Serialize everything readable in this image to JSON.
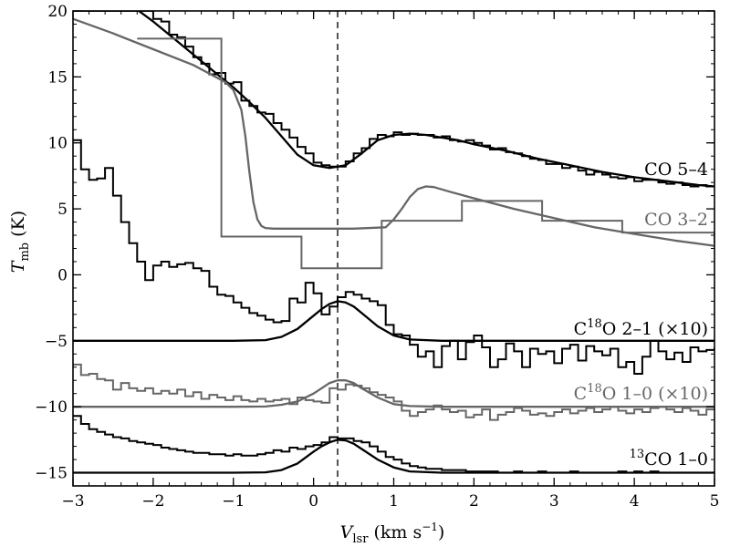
{
  "chart_data": {
    "type": "line",
    "title": "",
    "xlabel": "V_lsr (km s^-1)",
    "ylabel": "T_mb (K)",
    "xlim": [
      -3,
      5
    ],
    "ylim": [
      -16,
      20
    ],
    "x_ticks": [
      -3,
      -2,
      -1,
      0,
      1,
      2,
      3,
      4,
      5
    ],
    "y_ticks": [
      -15,
      -10,
      -5,
      0,
      5,
      10,
      15,
      20
    ],
    "x_tick_labels": [
      "−3",
      "−2",
      "−1",
      "0",
      "1",
      "2",
      "3",
      "4",
      "5"
    ],
    "y_tick_labels": [
      "−15",
      "−10",
      "−5",
      "0",
      "5",
      "10",
      "15",
      "20"
    ],
    "grid": false,
    "vline": {
      "x": 0.3,
      "style": "dashed",
      "color": "#555555"
    },
    "label_parts": {
      "co54": "CO 5–4",
      "co32": "CO 3–2",
      "c18o21_pre": "C",
      "c18o21_sup": "18",
      "c18o21_post": "O 2–1 (×10)",
      "c18o10_pre": "C",
      "c18o10_sup": "18",
      "c18o10_post": "O 1–0 (×10)",
      "co13_sup": "13",
      "co13_post": "CO 1–0"
    },
    "series": [
      {
        "name": "CO 5–4",
        "color": "#000000",
        "step": {
          "x": [
            -3.0,
            -2.1,
            -2.0,
            -1.9,
            -1.8,
            -1.7,
            -1.6,
            -1.5,
            -1.4,
            -1.3,
            -1.2,
            -1.1,
            -1.0,
            -0.9,
            -0.8,
            -0.7,
            -0.6,
            -0.5,
            -0.4,
            -0.3,
            -0.2,
            -0.1,
            0.0,
            0.1,
            0.2,
            0.3,
            0.4,
            0.5,
            0.6,
            0.7,
            0.8,
            0.9,
            1.0,
            1.1,
            1.2,
            1.3,
            1.4,
            1.5,
            1.6,
            1.7,
            1.8,
            1.9,
            2.0,
            2.1,
            2.2,
            2.3,
            2.4,
            2.5,
            2.6,
            2.7,
            2.8,
            2.9,
            3.0,
            3.1,
            3.2,
            3.3,
            3.4,
            3.5,
            3.6,
            3.7,
            3.8,
            3.9,
            4.0,
            4.1,
            4.2,
            4.3,
            4.4,
            4.5,
            4.6,
            4.7,
            4.8,
            4.9,
            5.0
          ],
          "y": [
            20,
            20,
            19.4,
            19.2,
            18.2,
            18.0,
            17.3,
            16.5,
            16.0,
            15.2,
            15.3,
            14.5,
            14.6,
            13.2,
            12.8,
            12.3,
            12.2,
            11.5,
            11.0,
            10.4,
            9.7,
            9.2,
            8.5,
            8.3,
            8.2,
            8.2,
            8.6,
            9.2,
            9.6,
            10.3,
            10.6,
            10.5,
            10.8,
            10.6,
            10.7,
            10.6,
            10.6,
            10.4,
            10.5,
            10.2,
            10.1,
            10.2,
            10.0,
            9.8,
            9.5,
            9.6,
            9.3,
            9.2,
            9.0,
            8.8,
            8.7,
            8.4,
            8.4,
            8.1,
            8.2,
            7.9,
            7.6,
            7.8,
            7.6,
            7.4,
            7.3,
            7.4,
            7.1,
            7.2,
            7.2,
            7.0,
            6.9,
            7.0,
            6.8,
            6.7,
            6.8,
            6.7,
            6.7
          ]
        },
        "fit": {
          "x": [
            -2.2,
            -2.0,
            -1.8,
            -1.6,
            -1.4,
            -1.2,
            -1.0,
            -0.8,
            -0.6,
            -0.4,
            -0.2,
            0.0,
            0.2,
            0.4,
            0.6,
            0.8,
            1.0,
            1.2,
            1.4,
            1.6,
            1.8,
            2.0,
            2.4,
            2.8,
            3.2,
            3.6,
            4.0,
            4.4,
            4.8,
            5.0
          ],
          "y": [
            20.1,
            19.2,
            18.2,
            17.2,
            16.2,
            15.2,
            14.2,
            13.1,
            11.9,
            10.5,
            9.1,
            8.3,
            8.1,
            8.3,
            9.2,
            10.2,
            10.6,
            10.7,
            10.6,
            10.4,
            10.2,
            9.9,
            9.4,
            8.8,
            8.3,
            7.8,
            7.4,
            7.1,
            6.8,
            6.7
          ]
        }
      },
      {
        "name": "CO 3–2",
        "color": "#666666",
        "step": {
          "x": [
            -2.2,
            -1.15,
            -1.15,
            -0.15,
            -0.15,
            0.85,
            0.85,
            1.85,
            1.85,
            2.85,
            2.85,
            3.85,
            3.85,
            5.0
          ],
          "y": [
            17.9,
            17.9,
            2.9,
            2.9,
            0.5,
            0.5,
            4.1,
            4.1,
            5.6,
            5.6,
            4.1,
            4.1,
            3.2,
            2.4
          ]
        },
        "fit": {
          "x": [
            -3.0,
            -2.5,
            -2.0,
            -1.5,
            -1.1,
            -1.0,
            -0.9,
            -0.85,
            -0.8,
            -0.75,
            -0.7,
            -0.65,
            -0.6,
            -0.5,
            0.0,
            0.5,
            0.9,
            1.0,
            1.1,
            1.2,
            1.3,
            1.4,
            1.5,
            1.7,
            2.0,
            2.5,
            3.0,
            3.5,
            4.0,
            4.5,
            5.0
          ],
          "y": [
            19.4,
            18.3,
            17.1,
            15.9,
            14.6,
            14.0,
            12.5,
            10.5,
            7.8,
            5.5,
            4.2,
            3.7,
            3.55,
            3.5,
            3.5,
            3.5,
            3.6,
            4.2,
            5.0,
            5.9,
            6.5,
            6.7,
            6.65,
            6.3,
            5.8,
            5.0,
            4.3,
            3.6,
            3.1,
            2.6,
            2.2
          ]
        }
      },
      {
        "name": "C18O 2–1 (×10)",
        "color": "#000000",
        "step": {
          "x": [
            -3.0,
            -2.9,
            -2.8,
            -2.7,
            -2.6,
            -2.5,
            -2.4,
            -2.3,
            -2.2,
            -2.1,
            -2.0,
            -1.9,
            -1.8,
            -1.7,
            -1.6,
            -1.5,
            -1.4,
            -1.3,
            -1.2,
            -1.1,
            -1.0,
            -0.9,
            -0.8,
            -0.7,
            -0.6,
            -0.5,
            -0.4,
            -0.3,
            -0.2,
            -0.1,
            0.0,
            0.1,
            0.2,
            0.3,
            0.4,
            0.5,
            0.6,
            0.7,
            0.8,
            0.9,
            1.0,
            1.1,
            1.2,
            1.3,
            1.4,
            1.5,
            1.6,
            1.7,
            1.8,
            1.9,
            2.0,
            2.1,
            2.2,
            2.3,
            2.4,
            2.5,
            2.6,
            2.7,
            2.8,
            2.9,
            3.0,
            3.1,
            3.2,
            3.3,
            3.4,
            3.5,
            3.6,
            3.7,
            3.8,
            3.9,
            4.0,
            4.1,
            4.2,
            4.3,
            4.4,
            4.5,
            4.6,
            4.7,
            4.8,
            4.9,
            5.0
          ],
          "y": [
            10.2,
            8.0,
            7.2,
            7.3,
            8.1,
            6.0,
            4.0,
            2.4,
            1.0,
            -0.4,
            0.7,
            1.0,
            0.6,
            0.8,
            0.9,
            0.5,
            0.3,
            -0.9,
            -1.5,
            -1.6,
            -2.1,
            -2.5,
            -2.9,
            -3.1,
            -3.4,
            -3.6,
            -3.5,
            -1.8,
            -2.1,
            -0.6,
            -1.4,
            -3.0,
            -2.4,
            -1.7,
            -1.3,
            -1.5,
            -1.8,
            -2.0,
            -2.3,
            -3.8,
            -4.5,
            -4.6,
            -5.3,
            -6.2,
            -5.8,
            -7.0,
            -5.4,
            -5.0,
            -6.4,
            -5.1,
            -4.6,
            -5.5,
            -7.0,
            -6.4,
            -5.2,
            -5.8,
            -7.0,
            -5.6,
            -6.0,
            -5.8,
            -6.7,
            -5.6,
            -5.3,
            -6.5,
            -5.4,
            -5.8,
            -6.1,
            -5.6,
            -7.0,
            -6.6,
            -7.5,
            -6.2,
            -5.0,
            -5.8,
            -6.4,
            -5.9,
            -6.6,
            -5.5,
            -5.8,
            -5.7,
            -5.5
          ]
        },
        "fit": {
          "x": [
            -3.0,
            -1.0,
            -0.6,
            -0.4,
            -0.2,
            0.0,
            0.1,
            0.2,
            0.3,
            0.4,
            0.5,
            0.6,
            0.8,
            1.0,
            1.2,
            1.6,
            2.0,
            3.0,
            4.0,
            5.0
          ],
          "y": [
            -5.0,
            -5.0,
            -4.95,
            -4.7,
            -4.1,
            -3.1,
            -2.6,
            -2.2,
            -2.0,
            -2.1,
            -2.4,
            -2.9,
            -3.9,
            -4.6,
            -4.9,
            -5.0,
            -5.0,
            -5.0,
            -5.0,
            -5.0
          ]
        }
      },
      {
        "name": "C18O 1–0 (×10)",
        "color": "#666666",
        "step": {
          "x": [
            -3.0,
            -2.9,
            -2.8,
            -2.7,
            -2.6,
            -2.5,
            -2.4,
            -2.3,
            -2.2,
            -2.1,
            -2.0,
            -1.9,
            -1.8,
            -1.7,
            -1.6,
            -1.5,
            -1.4,
            -1.3,
            -1.2,
            -1.1,
            -1.0,
            -0.9,
            -0.8,
            -0.7,
            -0.6,
            -0.5,
            -0.4,
            -0.3,
            -0.2,
            -0.1,
            0.0,
            0.1,
            0.2,
            0.3,
            0.4,
            0.5,
            0.6,
            0.7,
            0.8,
            0.9,
            1.0,
            1.1,
            1.2,
            1.3,
            1.4,
            1.5,
            1.6,
            1.7,
            1.8,
            1.9,
            2.0,
            2.1,
            2.2,
            2.3,
            2.4,
            2.5,
            2.6,
            2.7,
            2.8,
            2.9,
            3.0,
            3.1,
            3.2,
            3.3,
            3.4,
            3.5,
            3.6,
            3.7,
            3.8,
            3.9,
            4.0,
            4.1,
            4.2,
            4.3,
            4.4,
            4.5,
            4.6,
            4.7,
            4.8,
            4.9,
            5.0
          ],
          "y": [
            -6.8,
            -7.6,
            -7.5,
            -7.9,
            -8.0,
            -8.7,
            -8.2,
            -8.6,
            -8.8,
            -8.6,
            -9.0,
            -8.8,
            -9.0,
            -8.7,
            -9.2,
            -8.9,
            -9.4,
            -9.1,
            -9.3,
            -9.5,
            -9.2,
            -9.5,
            -9.6,
            -9.4,
            -9.6,
            -9.5,
            -9.4,
            -9.8,
            -9.3,
            -9.5,
            -9.6,
            -9.7,
            -8.6,
            -8.7,
            -8.3,
            -8.4,
            -8.6,
            -8.9,
            -9.1,
            -9.3,
            -9.6,
            -10.3,
            -10.7,
            -10.4,
            -10.2,
            -9.9,
            -10.2,
            -10.4,
            -10.3,
            -10.8,
            -10.6,
            -10.2,
            -11.0,
            -10.6,
            -10.4,
            -10.1,
            -10.3,
            -10.6,
            -10.5,
            -10.7,
            -10.4,
            -10.2,
            -10.5,
            -10.3,
            -10.1,
            -10.4,
            -10.2,
            -10.0,
            -10.3,
            -10.5,
            -10.2,
            -10.4,
            -10.1,
            -10.0,
            -10.2,
            -10.4,
            -10.1,
            -10.3,
            -10.6,
            -10.2,
            -10.3
          ]
        },
        "fit": {
          "x": [
            -3.0,
            -1.0,
            -0.6,
            -0.4,
            -0.2,
            0.0,
            0.1,
            0.2,
            0.3,
            0.4,
            0.5,
            0.6,
            0.8,
            1.0,
            1.2,
            1.6,
            2.0,
            3.0,
            4.0,
            5.0
          ],
          "y": [
            -10.0,
            -10.0,
            -9.98,
            -9.85,
            -9.6,
            -9.0,
            -8.6,
            -8.2,
            -8.0,
            -8.0,
            -8.2,
            -8.6,
            -9.3,
            -9.8,
            -9.95,
            -10.0,
            -10.0,
            -10.0,
            -10.0,
            -10.0
          ]
        }
      },
      {
        "name": "13CO 1–0",
        "color": "#000000",
        "step": {
          "x": [
            -3.0,
            -2.9,
            -2.8,
            -2.7,
            -2.6,
            -2.5,
            -2.4,
            -2.3,
            -2.2,
            -2.1,
            -2.0,
            -1.9,
            -1.8,
            -1.7,
            -1.6,
            -1.5,
            -1.4,
            -1.3,
            -1.2,
            -1.1,
            -1.0,
            -0.9,
            -0.8,
            -0.7,
            -0.6,
            -0.5,
            -0.4,
            -0.3,
            -0.2,
            -0.1,
            0.0,
            0.1,
            0.2,
            0.3,
            0.4,
            0.5,
            0.6,
            0.7,
            0.8,
            0.9,
            1.0,
            1.1,
            1.2,
            1.3,
            1.4,
            1.5,
            1.6,
            1.7,
            1.8,
            1.9,
            2.0,
            2.1,
            2.2,
            2.3,
            2.4,
            2.5,
            2.6,
            2.7,
            2.8,
            2.9,
            3.0,
            3.1,
            3.2,
            3.3,
            3.4,
            3.5,
            3.6,
            3.7,
            3.8,
            3.9,
            4.0,
            4.1,
            4.2,
            4.3,
            4.4,
            4.5,
            4.6,
            4.7,
            4.8,
            4.9,
            5.0
          ],
          "y": [
            -10.7,
            -11.3,
            -11.7,
            -11.9,
            -12.1,
            -12.3,
            -12.4,
            -12.6,
            -12.7,
            -12.8,
            -12.9,
            -13.1,
            -13.2,
            -13.3,
            -13.4,
            -13.5,
            -13.5,
            -13.6,
            -13.6,
            -13.7,
            -13.6,
            -13.7,
            -13.7,
            -13.6,
            -13.5,
            -13.3,
            -13.4,
            -13.1,
            -13.2,
            -13.0,
            -12.9,
            -12.7,
            -12.3,
            -12.4,
            -12.4,
            -12.6,
            -12.7,
            -13.0,
            -13.4,
            -13.8,
            -14.0,
            -14.3,
            -14.5,
            -14.6,
            -14.7,
            -14.7,
            -14.8,
            -14.8,
            -14.8,
            -14.9,
            -14.9,
            -14.9,
            -14.9,
            -15.0,
            -15.0,
            -14.9,
            -15.0,
            -15.0,
            -14.9,
            -15.0,
            -15.0,
            -15.0,
            -14.9,
            -15.0,
            -15.0,
            -15.0,
            -15.0,
            -15.0,
            -14.9,
            -15.0,
            -14.9,
            -15.0,
            -14.9,
            -15.0,
            -15.0,
            -15.0,
            -15.0,
            -15.0,
            -15.0,
            -15.0,
            -15.0
          ]
        },
        "fit": {
          "x": [
            -3.0,
            -1.0,
            -0.6,
            -0.4,
            -0.2,
            0.0,
            0.1,
            0.2,
            0.3,
            0.4,
            0.5,
            0.6,
            0.8,
            1.0,
            1.2,
            1.6,
            2.0,
            3.0,
            4.0,
            5.0
          ],
          "y": [
            -15.0,
            -15.0,
            -14.97,
            -14.8,
            -14.3,
            -13.4,
            -13.0,
            -12.7,
            -12.5,
            -12.55,
            -12.8,
            -13.2,
            -14.0,
            -14.6,
            -14.9,
            -15.0,
            -15.0,
            -15.0,
            -15.0,
            -15.0
          ]
        }
      }
    ]
  }
}
